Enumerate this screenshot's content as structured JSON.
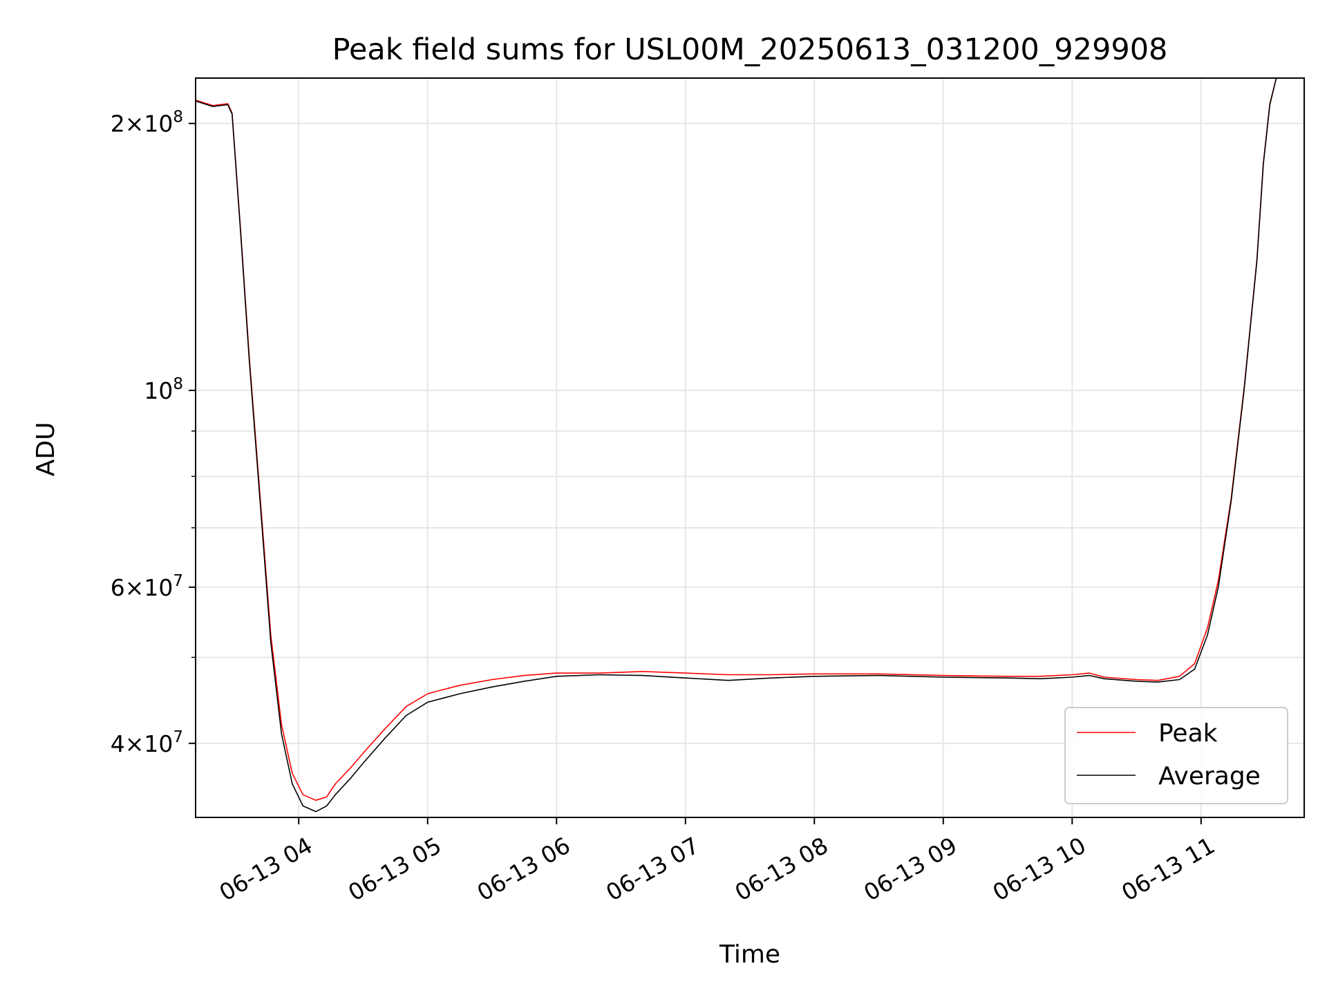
{
  "chart_data": {
    "type": "line",
    "title": "Peak field sums for USL00M_20250613_031200_929908",
    "xlabel": "Time",
    "ylabel": "ADU",
    "y_scale": "log",
    "xlim": [
      "2025-06-13 03:12",
      "2025-06-13 11:48"
    ],
    "ylim": [
      33000000,
      225000000
    ],
    "grid": true,
    "legend_position": "lower right",
    "x_ticks": [
      {
        "value": "2025-06-13 04:00",
        "label": "06-13 04"
      },
      {
        "value": "2025-06-13 05:00",
        "label": "06-13 05"
      },
      {
        "value": "2025-06-13 06:00",
        "label": "06-13 06"
      },
      {
        "value": "2025-06-13 07:00",
        "label": "06-13 07"
      },
      {
        "value": "2025-06-13 08:00",
        "label": "06-13 08"
      },
      {
        "value": "2025-06-13 09:00",
        "label": "06-13 09"
      },
      {
        "value": "2025-06-13 10:00",
        "label": "06-13 10"
      },
      {
        "value": "2025-06-13 11:00",
        "label": "06-13 11"
      }
    ],
    "y_ticks": [
      {
        "value": 40000000,
        "base": "4",
        "exp": "7"
      },
      {
        "value": 60000000,
        "base": "6",
        "exp": "7"
      },
      {
        "value": 100000000,
        "base": "",
        "exp": "8"
      },
      {
        "value": 200000000,
        "base": "2",
        "exp": "8"
      }
    ],
    "y_minor_ticks": [
      50000000,
      70000000,
      80000000,
      90000000
    ],
    "series": [
      {
        "name": "Average",
        "color": "#000000",
        "x": [
          "2025-06-13 03:12",
          "2025-06-13 03:20",
          "2025-06-13 03:27",
          "2025-06-13 03:29",
          "2025-06-13 03:33",
          "2025-06-13 03:37",
          "2025-06-13 03:42",
          "2025-06-13 03:47",
          "2025-06-13 03:52",
          "2025-06-13 03:57",
          "2025-06-13 04:02",
          "2025-06-13 04:08",
          "2025-06-13 04:13",
          "2025-06-13 04:17",
          "2025-06-13 04:24",
          "2025-06-13 04:30",
          "2025-06-13 04:40",
          "2025-06-13 04:50",
          "2025-06-13 05:00",
          "2025-06-13 05:15",
          "2025-06-13 05:30",
          "2025-06-13 05:45",
          "2025-06-13 06:00",
          "2025-06-13 06:20",
          "2025-06-13 06:40",
          "2025-06-13 07:00",
          "2025-06-13 07:20",
          "2025-06-13 07:40",
          "2025-06-13 08:00",
          "2025-06-13 08:30",
          "2025-06-13 09:00",
          "2025-06-13 09:30",
          "2025-06-13 09:45",
          "2025-06-13 10:00",
          "2025-06-13 10:08",
          "2025-06-13 10:15",
          "2025-06-13 10:30",
          "2025-06-13 10:40",
          "2025-06-13 10:50",
          "2025-06-13 10:57",
          "2025-06-13 11:03",
          "2025-06-13 11:08",
          "2025-06-13 11:14",
          "2025-06-13 11:20",
          "2025-06-13 11:26",
          "2025-06-13 11:29",
          "2025-06-13 11:32",
          "2025-06-13 11:35"
        ],
        "y": [
          212000000,
          209000000,
          210000000,
          205000000,
          150000000,
          108000000,
          75000000,
          52000000,
          41000000,
          36000000,
          34000000,
          33500000,
          34000000,
          35000000,
          36500000,
          38000000,
          40500000,
          43000000,
          44500000,
          45500000,
          46300000,
          47000000,
          47600000,
          47800000,
          47700000,
          47400000,
          47100000,
          47400000,
          47600000,
          47700000,
          47500000,
          47400000,
          47300000,
          47500000,
          47700000,
          47300000,
          47000000,
          46900000,
          47200000,
          48500000,
          53000000,
          60000000,
          75000000,
          100000000,
          140000000,
          180000000,
          210000000,
          225000000
        ]
      },
      {
        "name": "Peak",
        "color": "#ff0000",
        "x": [
          "2025-06-13 03:12",
          "2025-06-13 03:20",
          "2025-06-13 03:27",
          "2025-06-13 03:29",
          "2025-06-13 03:33",
          "2025-06-13 03:37",
          "2025-06-13 03:42",
          "2025-06-13 03:47",
          "2025-06-13 03:52",
          "2025-06-13 03:57",
          "2025-06-13 04:02",
          "2025-06-13 04:08",
          "2025-06-13 04:13",
          "2025-06-13 04:17",
          "2025-06-13 04:24",
          "2025-06-13 04:30",
          "2025-06-13 04:40",
          "2025-06-13 04:50",
          "2025-06-13 05:00",
          "2025-06-13 05:15",
          "2025-06-13 05:30",
          "2025-06-13 05:45",
          "2025-06-13 06:00",
          "2025-06-13 06:20",
          "2025-06-13 06:40",
          "2025-06-13 07:00",
          "2025-06-13 07:20",
          "2025-06-13 07:40",
          "2025-06-13 08:00",
          "2025-06-13 08:30",
          "2025-06-13 09:00",
          "2025-06-13 09:30",
          "2025-06-13 09:45",
          "2025-06-13 10:00",
          "2025-06-13 10:08",
          "2025-06-13 10:15",
          "2025-06-13 10:30",
          "2025-06-13 10:40",
          "2025-06-13 10:50",
          "2025-06-13 10:57",
          "2025-06-13 11:03",
          "2025-06-13 11:08",
          "2025-06-13 11:14",
          "2025-06-13 11:20",
          "2025-06-13 11:26",
          "2025-06-13 11:29",
          "2025-06-13 11:32",
          "2025-06-13 11:35"
        ],
        "y": [
          212500000,
          209500000,
          210500000,
          205500000,
          151000000,
          109000000,
          76000000,
          53000000,
          42000000,
          37000000,
          35000000,
          34500000,
          34800000,
          36000000,
          37500000,
          39000000,
          41500000,
          44000000,
          45500000,
          46500000,
          47200000,
          47700000,
          48000000,
          48000000,
          48200000,
          48000000,
          47800000,
          47800000,
          47900000,
          47900000,
          47700000,
          47600000,
          47600000,
          47800000,
          48000000,
          47500000,
          47200000,
          47100000,
          47600000,
          49200000,
          54000000,
          61000000,
          75500000,
          100500000,
          140500000,
          180500000,
          210500000,
          225000000
        ]
      }
    ]
  }
}
